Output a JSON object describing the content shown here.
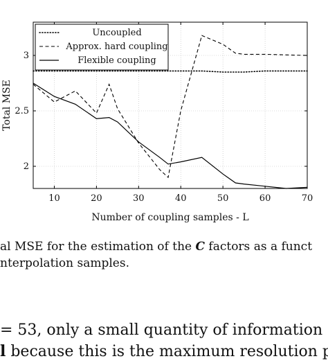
{
  "chart_data": {
    "type": "line",
    "title": "",
    "xlabel": "Number of coupling samples - L",
    "ylabel": "Total MSE",
    "xlim": [
      5,
      70
    ],
    "ylim": [
      1.8,
      3.3
    ],
    "xticks": [
      10,
      20,
      30,
      40,
      50,
      60,
      70
    ],
    "yticks": [
      2,
      2.5,
      3
    ],
    "ytick_labels": [
      "2",
      "2.5",
      "3"
    ],
    "grid": true,
    "legend_position": "top-left",
    "series": [
      {
        "name": "Uncoupled",
        "style": "dotted",
        "x": [
          5,
          10,
          15,
          20,
          25,
          30,
          35,
          40,
          45,
          50,
          55,
          60,
          65,
          70
        ],
        "y": [
          2.86,
          2.86,
          2.86,
          2.86,
          2.86,
          2.86,
          2.86,
          2.86,
          2.86,
          2.85,
          2.85,
          2.86,
          2.86,
          2.86
        ]
      },
      {
        "name": "Approx. hard coupling",
        "style": "dashed",
        "x": [
          5,
          10,
          15,
          20,
          23,
          25,
          30,
          35,
          37,
          40,
          45,
          50,
          53,
          55,
          60,
          70
        ],
        "y": [
          2.74,
          2.58,
          2.68,
          2.48,
          2.74,
          2.52,
          2.21,
          1.97,
          1.9,
          2.5,
          3.18,
          3.1,
          3.02,
          3.01,
          3.01,
          3.0
        ]
      },
      {
        "name": "Flexible coupling",
        "style": "solid",
        "x": [
          5,
          10,
          15,
          20,
          23,
          25,
          30,
          35,
          37,
          40,
          45,
          50,
          53,
          55,
          60,
          65,
          70
        ],
        "y": [
          2.75,
          2.63,
          2.56,
          2.43,
          2.44,
          2.4,
          2.22,
          2.08,
          2.02,
          2.04,
          2.08,
          1.93,
          1.85,
          1.84,
          1.82,
          1.8,
          1.81
        ]
      }
    ]
  },
  "caption": {
    "line1_a": "al MSE for the estimation of the ",
    "line1_math": "C",
    "line1_b": " factors as a funct",
    "line2": "nterpolation samples."
  },
  "body_text": {
    "line1_a": "= 53, only a small quantity of information",
    "line2_a": "l",
    "line2_b": " because this is the maximum resolution pr"
  }
}
